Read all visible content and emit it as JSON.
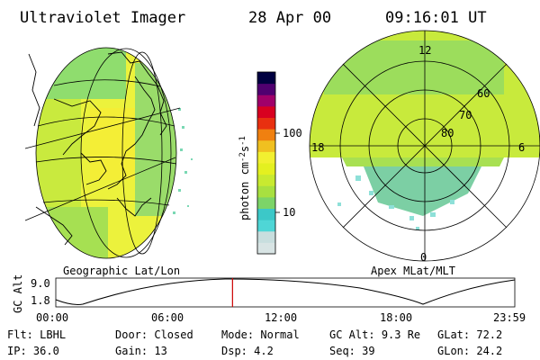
{
  "header": {
    "instrument": "Ultraviolet Imager",
    "date": "28 Apr 00",
    "time": "09:16:01 UT"
  },
  "colorbar": {
    "label": "photon cm",
    "label_exp1": "-2",
    "label_s": "s",
    "label_exp2": "-1",
    "ticks": [
      "100",
      "10"
    ],
    "colors": [
      "#d8e4e4",
      "#c8dede",
      "#4fd6d6",
      "#3cc8c8",
      "#7cd468",
      "#a8e040",
      "#c8ea30",
      "#e4f020",
      "#f2f030",
      "#f0c020",
      "#f08010",
      "#e83010",
      "#d80020",
      "#a0006a",
      "#500070",
      "#000040"
    ]
  },
  "left_panel": {
    "caption": "Geographic Lat/Lon",
    "bg_colors": [
      "#8ee070",
      "#c8ec40",
      "#eef23a"
    ]
  },
  "right_panel": {
    "caption": "Apex MLat/MLT",
    "mlt_labels": {
      "top": "12",
      "left": "18",
      "right": "6",
      "bottom": "0"
    },
    "lat_labels": [
      "60",
      "70",
      "80"
    ]
  },
  "altitude_plot": {
    "ylabel": "GC Alt",
    "yticks": [
      "9.0",
      "1.8"
    ],
    "xticks": [
      "00:00",
      "06:00",
      "12:00",
      "18:00",
      "23:59"
    ],
    "current_time_fraction": 0.385,
    "marker_color": "#cc0000"
  },
  "status": {
    "row1": [
      {
        "k": "Flt:",
        "v": "LBHL"
      },
      {
        "k": "Door:",
        "v": "Closed"
      },
      {
        "k": "Mode:",
        "v": "Normal"
      },
      {
        "k": "GC Alt:",
        "v": "9.3 Re"
      },
      {
        "k": "GLat:",
        "v": "72.2"
      }
    ],
    "row2": [
      {
        "k": "IP:",
        "v": "36.0"
      },
      {
        "k": "Gain:",
        "v": "13"
      },
      {
        "k": "Dsp:",
        "v": "4.2"
      },
      {
        "k": "Seq:",
        "v": "39"
      },
      {
        "k": "GLon:",
        "v": "24.2"
      }
    ]
  }
}
